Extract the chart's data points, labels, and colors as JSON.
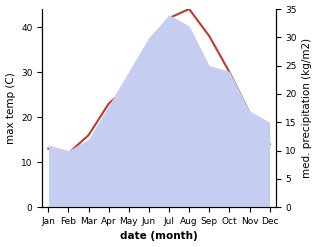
{
  "months": [
    "Jan",
    "Feb",
    "Mar",
    "Apr",
    "May",
    "Jun",
    "Jul",
    "Aug",
    "Sep",
    "Oct",
    "Nov",
    "Dec"
  ],
  "temp": [
    13,
    12,
    16,
    23,
    27,
    33,
    42,
    44,
    38,
    30,
    21,
    14
  ],
  "precip": [
    11,
    10,
    12,
    18,
    24,
    30,
    34,
    32,
    25,
    24,
    17,
    15
  ],
  "temp_color": "#c0392b",
  "precip_fill_color": "#c5cef0",
  "ylabel_left": "max temp (C)",
  "ylabel_right": "med. precipitation (kg/m2)",
  "xlabel": "date (month)",
  "ylim_left": [
    0,
    44
  ],
  "ylim_right": [
    0,
    35
  ],
  "yticks_left": [
    0,
    10,
    20,
    30,
    40
  ],
  "yticks_right": [
    0,
    5,
    10,
    15,
    20,
    25,
    30,
    35
  ],
  "background_color": "#ffffff",
  "label_fontsize": 7.5,
  "tick_fontsize": 6.5
}
